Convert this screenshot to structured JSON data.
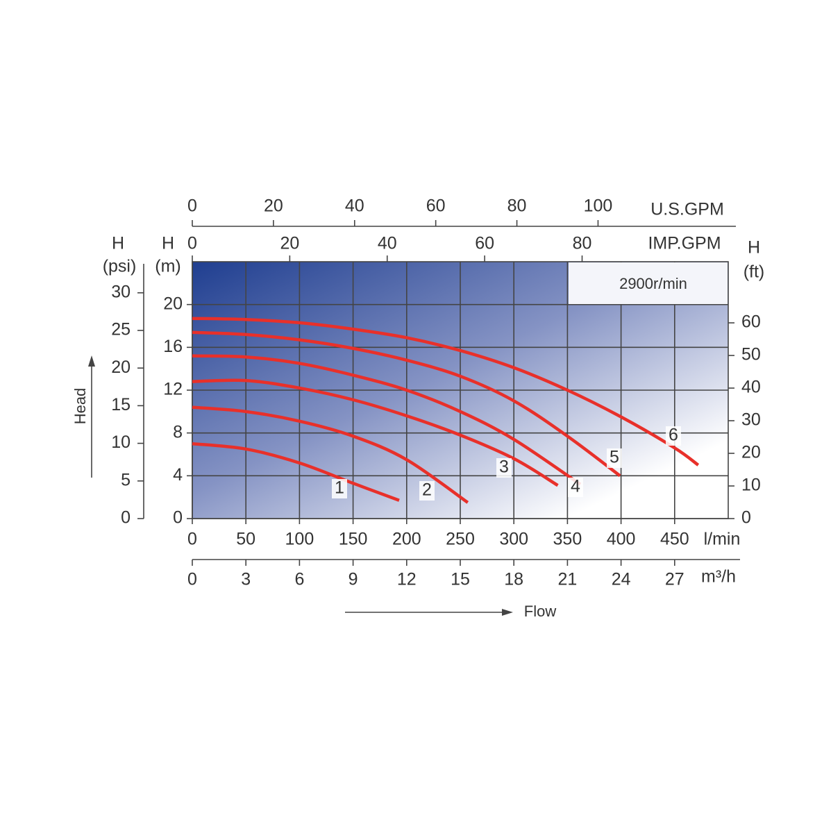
{
  "chart_data": {
    "type": "line",
    "annotation": "2900r/min",
    "x_unit": "l/min",
    "y_label": "H",
    "y_unit": "(m)",
    "xlim": [
      0,
      500
    ],
    "xticks": [
      0,
      50,
      100,
      150,
      200,
      250,
      300,
      350,
      400,
      450
    ],
    "ylim": [
      0,
      24
    ],
    "yticks": [
      0,
      4,
      8,
      12,
      16,
      20
    ],
    "grid": true,
    "head_label": "Head",
    "flow_label": "Flow",
    "extra_axes": [
      {
        "side": "left",
        "label": "H",
        "unit": "(psi)",
        "lim": [
          0,
          34.13
        ],
        "ticks": [
          0,
          5,
          10,
          15,
          20,
          25,
          30
        ]
      },
      {
        "side": "right",
        "label": "H",
        "unit": "(ft)",
        "lim": [
          0,
          78.74
        ],
        "ticks": [
          0,
          10,
          20,
          30,
          40,
          50,
          60
        ]
      },
      {
        "side": "top",
        "unit": "U.S.GPM",
        "lim": [
          0,
          132.09
        ],
        "ticks": [
          0,
          20,
          40,
          60,
          80,
          100
        ]
      },
      {
        "side": "top-inner",
        "unit": "IMP.GPM",
        "lim": [
          0,
          109.99
        ],
        "ticks": [
          0,
          20,
          40,
          60,
          80
        ]
      },
      {
        "side": "bottom",
        "unit": "m³/h",
        "lim": [
          0,
          30
        ],
        "ticks": [
          0,
          3,
          6,
          9,
          12,
          15,
          18,
          21,
          24,
          27
        ]
      }
    ],
    "series": [
      {
        "name": "1",
        "color": "#e8302a",
        "x": [
          0,
          50,
          100,
          150,
          193
        ],
        "values": [
          7.0,
          6.5,
          5.2,
          3.3,
          1.7
        ]
      },
      {
        "name": "2",
        "color": "#e8302a",
        "x": [
          0,
          50,
          100,
          150,
          200,
          257
        ],
        "values": [
          10.4,
          10.0,
          9.1,
          7.7,
          5.5,
          1.5
        ]
      },
      {
        "name": "3",
        "color": "#e8302a",
        "x": [
          0,
          50,
          100,
          150,
          200,
          250,
          300,
          341
        ],
        "values": [
          12.8,
          12.9,
          12.2,
          11.1,
          9.6,
          7.8,
          5.6,
          3.1
        ]
      },
      {
        "name": "4",
        "color": "#e8302a",
        "x": [
          0,
          50,
          100,
          150,
          200,
          250,
          300,
          362
        ],
        "values": [
          15.2,
          15.1,
          14.5,
          13.4,
          12.0,
          10.0,
          7.4,
          3.2
        ]
      },
      {
        "name": "5",
        "color": "#e8302a",
        "x": [
          0,
          50,
          100,
          150,
          200,
          250,
          300,
          350,
          399
        ],
        "values": [
          17.4,
          17.2,
          16.7,
          15.9,
          14.8,
          13.3,
          11.0,
          7.7,
          4.0
        ]
      },
      {
        "name": "6",
        "color": "#e8302a",
        "x": [
          0,
          50,
          100,
          150,
          200,
          250,
          300,
          350,
          400,
          450,
          472
        ],
        "values": [
          18.7,
          18.6,
          18.3,
          17.7,
          16.9,
          15.7,
          14.1,
          12.0,
          9.5,
          6.6,
          5.0
        ]
      }
    ]
  }
}
